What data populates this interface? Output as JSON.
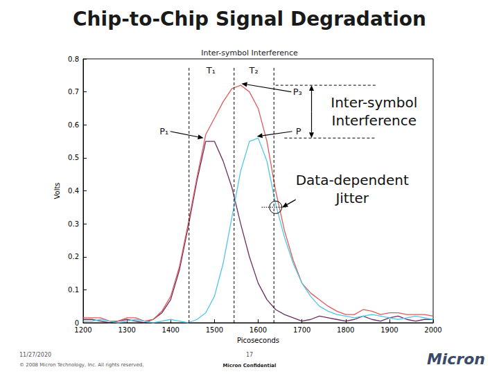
{
  "slide": {
    "title": "Chip-to-Chip Signal Degradation",
    "footer": {
      "date": "11/27/2020",
      "page": "17",
      "copyright": "© 2008 Micron Technology, Inc. All rights reserved.",
      "confidential": "Micron Confidential",
      "logo": "Micron"
    }
  },
  "chart_data": {
    "type": "line",
    "title": "Inter-symbol Interference",
    "x_label": "Picoseconds",
    "y_label": "Volts",
    "x": [
      1200,
      1220,
      1240,
      1260,
      1280,
      1300,
      1320,
      1340,
      1360,
      1380,
      1400,
      1420,
      1440,
      1460,
      1480,
      1500,
      1520,
      1540,
      1560,
      1580,
      1600,
      1620,
      1640,
      1660,
      1680,
      1700,
      1720,
      1740,
      1760,
      1780,
      1800,
      1820,
      1840,
      1860,
      1880,
      1900,
      1920,
      1940,
      1960,
      1980,
      2000
    ],
    "series": [
      {
        "color": "#6a2d5e",
        "values": [
          0.01,
          0.01,
          0.005,
          0,
          0.005,
          0.01,
          0.005,
          0,
          0.01,
          0.03,
          0.07,
          0.16,
          0.29,
          0.43,
          0.55,
          0.55,
          0.49,
          0.41,
          0.3,
          0.2,
          0.12,
          0.07,
          0.04,
          0.025,
          0.015,
          0.005,
          0.01,
          0.02,
          0.015,
          0.01,
          0.005,
          0.01,
          0.02,
          0.01,
          0.005,
          0.015,
          0.02,
          0.01,
          0.005,
          0.01,
          0.01
        ]
      },
      {
        "color": "#e05a5a",
        "values": [
          0.015,
          0.015,
          0.015,
          0.005,
          0.005,
          0.015,
          0.015,
          0.005,
          0.01,
          0.035,
          0.08,
          0.17,
          0.3,
          0.44,
          0.57,
          0.62,
          0.67,
          0.71,
          0.72,
          0.7,
          0.65,
          0.55,
          0.4,
          0.28,
          0.19,
          0.12,
          0.09,
          0.07,
          0.05,
          0.035,
          0.025,
          0.025,
          0.04,
          0.035,
          0.025,
          0.03,
          0.03,
          0.025,
          0.025,
          0.025,
          0.02
        ]
      },
      {
        "color": "#4fc6e6",
        "values": [
          0.005,
          0.005,
          0.01,
          0.005,
          0,
          0.005,
          0.01,
          0.005,
          0,
          0.005,
          0.01,
          0.005,
          0,
          0.01,
          0.03,
          0.08,
          0.18,
          0.32,
          0.46,
          0.55,
          0.56,
          0.49,
          0.36,
          0.26,
          0.18,
          0.12,
          0.08,
          0.05,
          0.035,
          0.025,
          0.02,
          0.015,
          0.02,
          0.025,
          0.02,
          0.015,
          0.01,
          0.015,
          0.02,
          0.015,
          0.01
        ]
      }
    ],
    "xlim": [
      1200,
      2000
    ],
    "xticks": [
      1200,
      1300,
      1400,
      1500,
      1600,
      1700,
      1800,
      1900,
      2000
    ],
    "ylim": [
      0,
      0.8
    ],
    "yticks": [
      0,
      0.1,
      0.2,
      0.3,
      0.4,
      0.5,
      0.6,
      0.7,
      0.8
    ],
    "grid": false,
    "vlines": [
      1442,
      1545,
      1636
    ],
    "hlines": [
      {
        "y": 0.72,
        "x": [
          1640,
          1870
        ]
      },
      {
        "y": 0.56,
        "x": [
          1660,
          1870
        ]
      }
    ],
    "annotations": [
      {
        "text": [
          "T₁"
        ],
        "x": 1492,
        "y": 0.765
      },
      {
        "text": [
          "T₂"
        ],
        "x": 1590,
        "y": 0.765
      },
      {
        "text": [
          "P₁"
        ],
        "x": 1385,
        "y": 0.58,
        "arrow_to": [
          1475,
          0.56
        ]
      },
      {
        "text": [
          "P₃"
        ],
        "x": 1690,
        "y": 0.7,
        "arrow_to": [
          1562,
          0.725
        ]
      },
      {
        "text": [
          "P"
        ],
        "x": 1692,
        "y": 0.58,
        "arrow_to": [
          1597,
          0.565
        ]
      },
      {
        "text": [
          "Inter-symbol",
          "Interference"
        ],
        "x": 1865,
        "y": 0.64,
        "big": true
      },
      {
        "text": [
          "Data-dependent",
          "Jitter"
        ],
        "x": 1815,
        "y": 0.405,
        "big": true,
        "arrow_to": [
          1655,
          0.35
        ]
      }
    ],
    "span_arrow": {
      "x": 1722,
      "y": [
        0.72,
        0.56
      ]
    },
    "circle": {
      "x": 1640,
      "y": 0.35
    }
  }
}
